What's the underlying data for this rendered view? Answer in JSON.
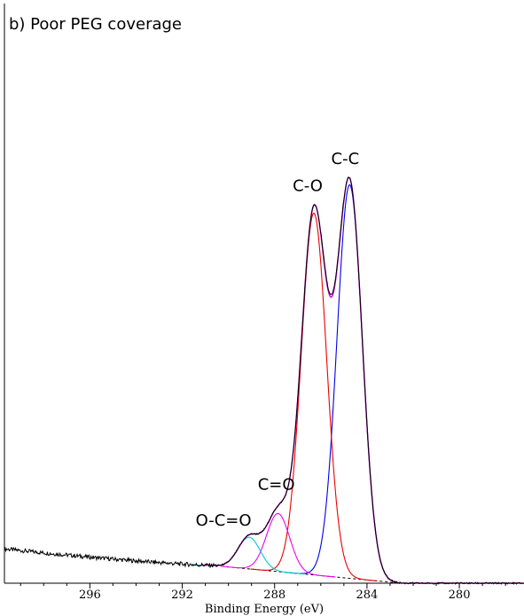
{
  "chart_data": {
    "type": "line",
    "title": "b) Poor PEG coverage",
    "xlabel": "Binding Energy (eV)",
    "ylabel": "",
    "x_reversed": true,
    "xlim": [
      299.7,
      277.2
    ],
    "ylim": [
      0,
      1.0
    ],
    "x_ticks": [
      296,
      292,
      288,
      284,
      280
    ],
    "tick_labels": [
      "296",
      "292",
      "288",
      "284",
      "280"
    ],
    "grid": false,
    "colors": {
      "envelope": "#000000",
      "fit_sum": "#cc00cc",
      "c_c": "#0000ee",
      "c_o": "#ee0000",
      "c_eq_o": "#ee00ee",
      "o_c_eq_o": "#00cccc",
      "background": "#000000"
    },
    "peaks": [
      {
        "name": "C-C",
        "label": "C-C",
        "center": 284.75,
        "height": 0.745,
        "width": 0.55,
        "color": "#0000ee"
      },
      {
        "name": "C-O",
        "label": "C-O",
        "center": 286.3,
        "height": 0.685,
        "width": 0.55,
        "color": "#ee0000"
      },
      {
        "name": "C=O",
        "label": "C=O",
        "center": 287.85,
        "height": 0.11,
        "width": 0.5,
        "color": "#ee00ee"
      },
      {
        "name": "O-C=O",
        "label": "O-C=O",
        "center": 289.1,
        "height": 0.06,
        "width": 0.48,
        "color": "#00cccc"
      }
    ],
    "baseline": {
      "start_x": 290.8,
      "end_x": 282.5,
      "start_y": 0.034,
      "end_y": 0.0
    },
    "left_tail": {
      "start_x": 299.7,
      "end_x": 290.8,
      "start_y": 0.065,
      "end_y": 0.034
    }
  }
}
